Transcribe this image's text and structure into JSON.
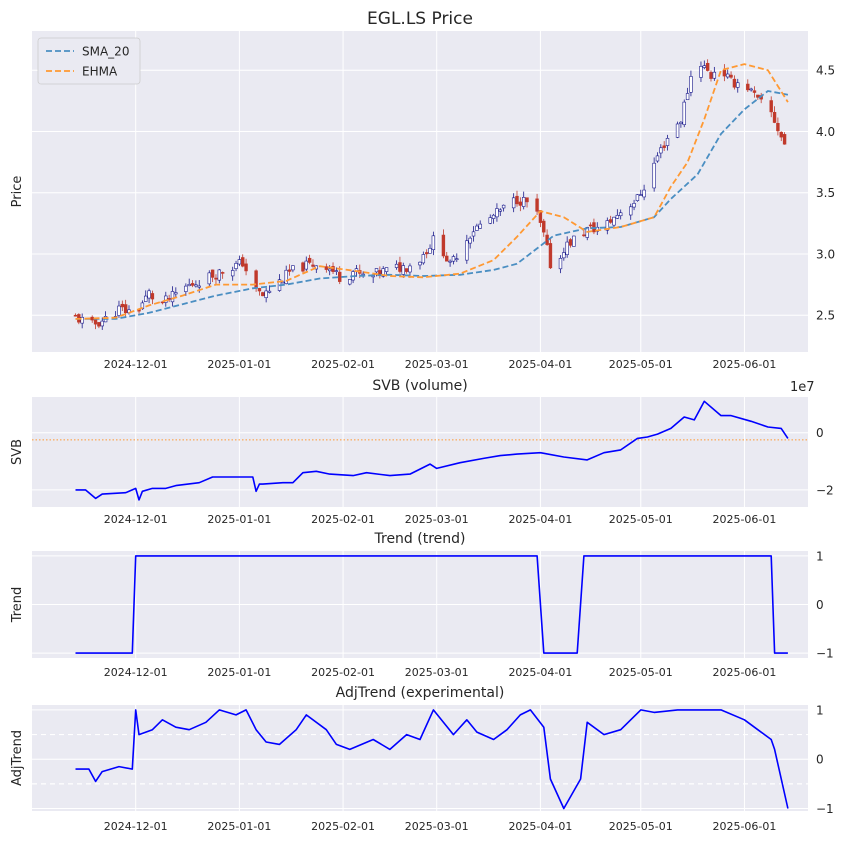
{
  "chart_data": [
    {
      "type": "candlestick",
      "title": "EGL.LS Price",
      "xlabel": "",
      "ylabel": "Price",
      "ylim": [
        2.2,
        4.82
      ],
      "yticks": [
        "2.5",
        "3.0",
        "3.5",
        "4.0",
        "4.5"
      ],
      "xticks": [
        "2024-12-01",
        "2025-01-01",
        "2025-02-01",
        "2025-03-01",
        "2025-04-01",
        "2025-05-01",
        "2025-06-01"
      ],
      "legend": {
        "position": "top-left",
        "entries": [
          "SMA_20",
          "EHMA"
        ]
      },
      "grid": true,
      "series": [
        {
          "name": "SMA_20",
          "color": "#4a8ec2",
          "style": "dashed",
          "x": [
            "2024-11-13",
            "2024-11-25",
            "2024-12-05",
            "2024-12-15",
            "2024-12-25",
            "2025-01-05",
            "2025-01-15",
            "2025-01-25",
            "2025-02-05",
            "2025-02-15",
            "2025-02-25",
            "2025-03-08",
            "2025-03-18",
            "2025-03-25",
            "2025-04-05",
            "2025-04-15",
            "2025-04-25",
            "2025-05-05",
            "2025-05-10",
            "2025-05-18",
            "2025-05-25",
            "2025-06-01",
            "2025-06-08",
            "2025-06-14"
          ],
          "y": [
            2.47,
            2.47,
            2.52,
            2.59,
            2.66,
            2.72,
            2.75,
            2.8,
            2.82,
            2.83,
            2.82,
            2.83,
            2.87,
            2.92,
            3.15,
            3.21,
            3.22,
            3.3,
            3.45,
            3.65,
            3.98,
            4.18,
            4.33,
            4.3
          ]
        },
        {
          "name": "EHMA",
          "color": "#ff9933",
          "style": "dashed",
          "x": [
            "2024-11-13",
            "2024-11-25",
            "2024-12-05",
            "2024-12-15",
            "2024-12-25",
            "2025-01-05",
            "2025-01-15",
            "2025-01-25",
            "2025-02-05",
            "2025-02-15",
            "2025-02-25",
            "2025-03-08",
            "2025-03-18",
            "2025-03-25",
            "2025-04-01",
            "2025-04-08",
            "2025-04-15",
            "2025-04-25",
            "2025-05-05",
            "2025-05-10",
            "2025-05-15",
            "2025-05-20",
            "2025-05-25",
            "2025-06-01",
            "2025-06-08",
            "2025-06-14"
          ],
          "y": [
            2.47,
            2.48,
            2.58,
            2.66,
            2.75,
            2.75,
            2.78,
            2.9,
            2.86,
            2.82,
            2.81,
            2.84,
            2.95,
            3.14,
            3.35,
            3.3,
            3.18,
            3.22,
            3.3,
            3.55,
            3.75,
            4.1,
            4.5,
            4.55,
            4.5,
            4.24
          ]
        }
      ],
      "ohlc_path": {
        "x": [
          "2024-11-13",
          "2024-11-18",
          "2024-11-22",
          "2024-11-26",
          "2024-12-01",
          "2024-12-05",
          "2024-12-08",
          "2024-12-12",
          "2024-12-15",
          "2024-12-20",
          "2024-12-26",
          "2025-01-02",
          "2025-01-06",
          "2025-01-08",
          "2025-01-12",
          "2025-01-16",
          "2025-01-20",
          "2025-01-26",
          "2025-02-01",
          "2025-02-04",
          "2025-02-08",
          "2025-02-12",
          "2025-02-16",
          "2025-02-20",
          "2025-02-24",
          "2025-03-01",
          "2025-03-05",
          "2025-03-08",
          "2025-03-12",
          "2025-03-15",
          "2025-03-20",
          "2025-03-25",
          "2025-03-30",
          "2025-04-02",
          "2025-04-05",
          "2025-04-08",
          "2025-04-11",
          "2025-04-15",
          "2025-04-20",
          "2025-04-25",
          "2025-04-30",
          "2025-05-03",
          "2025-05-06",
          "2025-05-09",
          "2025-05-13",
          "2025-05-16",
          "2025-05-18",
          "2025-05-22",
          "2025-05-24",
          "2025-05-28",
          "2025-06-01",
          "2025-06-05",
          "2025-06-09",
          "2025-06-14"
        ],
        "y": [
          2.48,
          2.42,
          2.47,
          2.55,
          2.52,
          2.68,
          2.58,
          2.65,
          2.72,
          2.78,
          2.85,
          2.93,
          2.7,
          2.66,
          2.75,
          2.85,
          2.9,
          2.93,
          2.79,
          2.86,
          2.8,
          2.85,
          2.88,
          2.9,
          2.96,
          3.15,
          2.9,
          3.05,
          3.2,
          3.25,
          3.35,
          3.45,
          3.4,
          3.15,
          2.8,
          3.05,
          3.12,
          3.2,
          3.22,
          3.35,
          3.45,
          3.6,
          3.8,
          3.95,
          4.1,
          4.45,
          4.6,
          4.45,
          4.55,
          4.4,
          4.4,
          4.25,
          4.15,
          3.83
        ]
      }
    },
    {
      "type": "line",
      "title": "SVB (volume)",
      "xlabel": "",
      "ylabel": "SVB",
      "multiplier": "1e7",
      "ylim": [
        -2.6,
        1.25
      ],
      "yticks": [
        "−2",
        "0"
      ],
      "xticks": [
        "2024-12-01",
        "2025-01-01",
        "2025-02-01",
        "2025-03-01",
        "2025-04-01",
        "2025-05-01",
        "2025-06-01"
      ],
      "reference_line": {
        "y": -0.25,
        "color": "#ff9933",
        "style": "dotted"
      },
      "grid": true,
      "series": [
        {
          "name": "",
          "color": "#0000ff",
          "x": [
            "2024-11-13",
            "2024-11-16",
            "2024-11-19",
            "2024-11-21",
            "2024-11-28",
            "2024-12-01",
            "2024-12-02",
            "2024-12-03",
            "2024-12-06",
            "2024-12-10",
            "2024-12-13",
            "2024-12-20",
            "2024-12-24",
            "2024-12-27",
            "2025-01-05",
            "2025-01-06",
            "2025-01-07",
            "2025-01-08",
            "2025-01-14",
            "2025-01-17",
            "2025-01-20",
            "2025-01-24",
            "2025-01-28",
            "2025-02-04",
            "2025-02-08",
            "2025-02-15",
            "2025-02-21",
            "2025-02-27",
            "2025-03-01",
            "2025-03-08",
            "2025-03-15",
            "2025-03-20",
            "2025-03-25",
            "2025-04-01",
            "2025-04-08",
            "2025-04-15",
            "2025-04-20",
            "2025-04-25",
            "2025-04-30",
            "2025-05-03",
            "2025-05-06",
            "2025-05-10",
            "2025-05-14",
            "2025-05-17",
            "2025-05-20",
            "2025-05-25",
            "2025-05-28",
            "2025-06-03",
            "2025-06-08",
            "2025-06-12",
            "2025-06-14"
          ],
          "y": [
            -2.0,
            -2.0,
            -2.3,
            -2.15,
            -2.1,
            -1.95,
            -2.35,
            -2.05,
            -1.95,
            -1.95,
            -1.85,
            -1.75,
            -1.55,
            -1.55,
            -1.55,
            -2.05,
            -1.8,
            -1.8,
            -1.75,
            -1.75,
            -1.4,
            -1.35,
            -1.45,
            -1.5,
            -1.4,
            -1.5,
            -1.45,
            -1.1,
            -1.25,
            -1.05,
            -0.9,
            -0.8,
            -0.75,
            -0.7,
            -0.85,
            -0.95,
            -0.7,
            -0.6,
            -0.2,
            -0.15,
            -0.05,
            0.15,
            0.55,
            0.45,
            1.1,
            0.6,
            0.6,
            0.4,
            0.2,
            0.15,
            -0.2
          ]
        }
      ]
    },
    {
      "type": "line",
      "title": "Trend (trend)",
      "xlabel": "",
      "ylabel": "Trend",
      "ylim": [
        -1.1,
        1.1
      ],
      "yticks": [
        "−1",
        "0",
        "1"
      ],
      "xticks": [
        "2024-12-01",
        "2025-01-01",
        "2025-02-01",
        "2025-03-01",
        "2025-04-01",
        "2025-05-01",
        "2025-06-01"
      ],
      "grid": true,
      "series": [
        {
          "name": "",
          "color": "#0000ff",
          "x": [
            "2024-11-13",
            "2024-11-30",
            "2024-12-01",
            "2025-03-31",
            "2025-04-02",
            "2025-04-12",
            "2025-04-14",
            "2025-06-09",
            "2025-06-10",
            "2025-06-14"
          ],
          "y": [
            -1,
            -1,
            1,
            1,
            -1,
            -1,
            1,
            1,
            -1,
            -1
          ]
        }
      ]
    },
    {
      "type": "line",
      "title": "AdjTrend (experimental)",
      "xlabel": "",
      "ylabel": "AdjTrend",
      "ylim": [
        -1.05,
        1.1
      ],
      "yticks": [
        "−1",
        "0",
        "1"
      ],
      "xticks": [
        "2024-12-01",
        "2025-01-01",
        "2025-02-01",
        "2025-03-01",
        "2025-04-01",
        "2025-05-01",
        "2025-06-01"
      ],
      "reference_lines": [
        {
          "y": 0.5,
          "color": "#ffffff",
          "style": "dashed"
        },
        {
          "y": -0.5,
          "color": "#ffffff",
          "style": "dashed"
        }
      ],
      "grid": true,
      "series": [
        {
          "name": "",
          "color": "#0000ff",
          "x": [
            "2024-11-13",
            "2024-11-17",
            "2024-11-19",
            "2024-11-21",
            "2024-11-26",
            "2024-11-30",
            "2024-12-01",
            "2024-12-02",
            "2024-12-06",
            "2024-12-09",
            "2024-12-13",
            "2024-12-17",
            "2024-12-22",
            "2024-12-26",
            "2024-12-31",
            "2025-01-03",
            "2025-01-06",
            "2025-01-09",
            "2025-01-13",
            "2025-01-18",
            "2025-01-21",
            "2025-01-27",
            "2025-01-30",
            "2025-02-03",
            "2025-02-10",
            "2025-02-15",
            "2025-02-20",
            "2025-02-24",
            "2025-02-28",
            "2025-03-06",
            "2025-03-10",
            "2025-03-13",
            "2025-03-18",
            "2025-03-22",
            "2025-03-26",
            "2025-03-29",
            "2025-04-02",
            "2025-04-04",
            "2025-04-08",
            "2025-04-13",
            "2025-04-15",
            "2025-04-20",
            "2025-04-25",
            "2025-05-01",
            "2025-05-05",
            "2025-05-12",
            "2025-05-25",
            "2025-06-01",
            "2025-06-05",
            "2025-06-09",
            "2025-06-10",
            "2025-06-14"
          ],
          "y": [
            -0.2,
            -0.2,
            -0.45,
            -0.25,
            -0.15,
            -0.2,
            1.0,
            0.5,
            0.6,
            0.8,
            0.65,
            0.6,
            0.75,
            1.0,
            0.9,
            1.0,
            0.6,
            0.35,
            0.3,
            0.6,
            0.9,
            0.6,
            0.3,
            0.2,
            0.4,
            0.2,
            0.5,
            0.4,
            1.0,
            0.5,
            0.8,
            0.55,
            0.4,
            0.6,
            0.9,
            1.0,
            0.65,
            -0.4,
            -1.0,
            -0.4,
            0.75,
            0.5,
            0.6,
            1.0,
            0.95,
            1.0,
            1.0,
            0.8,
            0.6,
            0.4,
            0.2,
            -1.0
          ]
        }
      ]
    }
  ]
}
